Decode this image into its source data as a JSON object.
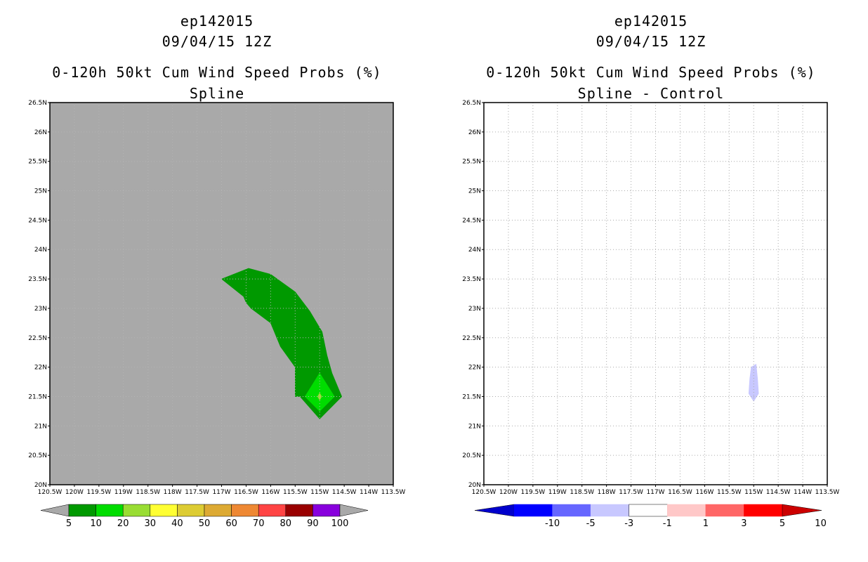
{
  "panels": [
    {
      "title_line1": "ep142015",
      "title_line2": "09/04/15 12Z",
      "title_line3": "0-120h 50kt Cum Wind Speed Probs (%)",
      "title_line4": "Spline"
    },
    {
      "title_line1": "ep142015",
      "title_line2": "09/04/15 12Z",
      "title_line3": "0-120h 50kt Cum Wind Speed Probs (%)",
      "title_line4": "Spline - Control"
    }
  ],
  "chart_data": [
    {
      "type": "heatmap",
      "title": "0-120h 50kt Cum Wind Speed Probs (%)",
      "subtitle": "Spline",
      "xlim": [
        -120.5,
        -113.5
      ],
      "ylim": [
        20,
        26.5
      ],
      "x_ticks": [
        "120.5W",
        "120W",
        "119.5W",
        "119W",
        "118.5W",
        "118W",
        "117.5W",
        "117W",
        "116.5W",
        "116W",
        "115.5W",
        "115W",
        "114.5W",
        "114W",
        "113.5W"
      ],
      "y_ticks": [
        "20N",
        "20.5N",
        "21N",
        "21.5N",
        "22N",
        "22.5N",
        "23N",
        "23.5N",
        "24N",
        "24.5N",
        "25N",
        "25.5N",
        "26N",
        "26.5N"
      ],
      "grid": true,
      "background_color": "#a9a9a9",
      "colorbar_labels": [
        "5",
        "10",
        "20",
        "30",
        "40",
        "50",
        "60",
        "70",
        "80",
        "90",
        "100"
      ],
      "colorbar_colors": [
        "#009900",
        "#00dd00",
        "#99dd33",
        "#ffff33",
        "#ddcc33",
        "#ddaa33",
        "#ee8833",
        "#ff4444",
        "#990000",
        "#8800dd"
      ],
      "regions": [
        {
          "level": "5-10",
          "color": "#009900",
          "points": [
            [
              -117.0,
              23.5
            ],
            [
              -116.45,
              23.68
            ],
            [
              -116.0,
              23.58
            ],
            [
              -115.5,
              23.28
            ],
            [
              -115.2,
              22.95
            ],
            [
              -114.95,
              22.6
            ],
            [
              -114.85,
              22.2
            ],
            [
              -114.75,
              21.9
            ],
            [
              -114.55,
              21.5
            ],
            [
              -115.0,
              21.12
            ],
            [
              -115.4,
              21.5
            ],
            [
              -115.5,
              21.5
            ],
            [
              -115.5,
              22.0
            ],
            [
              -115.8,
              22.35
            ],
            [
              -116.0,
              22.75
            ],
            [
              -116.4,
              23.0
            ],
            [
              -116.5,
              23.1
            ],
            [
              -116.55,
              23.2
            ]
          ]
        },
        {
          "level": "10-20",
          "color": "#00dd00",
          "points": [
            [
              -115.0,
              21.9
            ],
            [
              -114.7,
              21.5
            ],
            [
              -115.0,
              21.25
            ],
            [
              -115.3,
              21.5
            ]
          ]
        },
        {
          "level": "20-30",
          "color": "#99dd33",
          "points": [
            [
              -115.0,
              21.56
            ],
            [
              -114.96,
              21.5
            ],
            [
              -115.0,
              21.44
            ],
            [
              -115.04,
              21.5
            ]
          ]
        }
      ]
    },
    {
      "type": "heatmap",
      "title": "0-120h 50kt Cum Wind Speed Probs (%)",
      "subtitle": "Spline - Control",
      "xlim": [
        -120.5,
        -113.5
      ],
      "ylim": [
        20,
        26.5
      ],
      "x_ticks": [
        "120.5W",
        "120W",
        "119.5W",
        "119W",
        "118.5W",
        "118W",
        "117.5W",
        "117W",
        "116.5W",
        "116W",
        "115.5W",
        "115W",
        "114.5W",
        "114W",
        "113.5W"
      ],
      "y_ticks": [
        "20N",
        "20.5N",
        "21N",
        "21.5N",
        "22N",
        "22.5N",
        "23N",
        "23.5N",
        "24N",
        "24.5N",
        "25N",
        "25.5N",
        "26N",
        "26.5N"
      ],
      "grid": true,
      "background_color": "#ffffff",
      "colorbar_labels": [
        "-10",
        "-5",
        "-3",
        "-1",
        "1",
        "3",
        "5",
        "10"
      ],
      "colorbar_colors": [
        "#0000cc",
        "#0000ff",
        "#6666ff",
        "#c8c8ff",
        "#ffffff",
        "#ffc8c8",
        "#ff6666",
        "#ff0000",
        "#cc0000"
      ],
      "regions": [
        {
          "level": "-3 to -1",
          "color": "#c8c8ff",
          "points": [
            [
              -115.05,
              22.0
            ],
            [
              -114.95,
              22.05
            ],
            [
              -114.92,
              21.8
            ],
            [
              -114.9,
              21.55
            ],
            [
              -115.0,
              21.42
            ],
            [
              -115.1,
              21.55
            ],
            [
              -115.08,
              21.8
            ]
          ]
        }
      ]
    }
  ]
}
